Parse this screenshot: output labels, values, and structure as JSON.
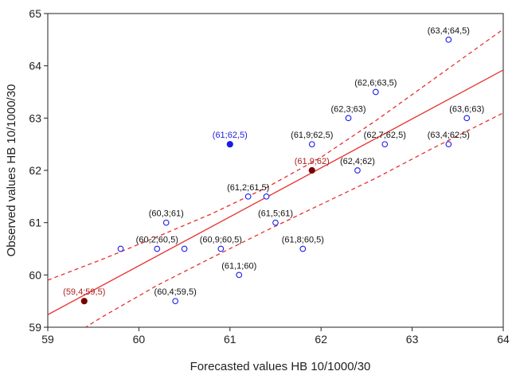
{
  "chart_data": {
    "type": "scatter",
    "xlabel": "Forecasted values HB 10/1000/30",
    "ylabel": "Observed values HB 10/1000/30",
    "xlim": [
      59,
      64
    ],
    "ylim": [
      59,
      65
    ],
    "x_ticks": [
      "59",
      "60",
      "61",
      "62",
      "63",
      "64"
    ],
    "y_ticks": [
      "59",
      "60",
      "61",
      "62",
      "63",
      "64",
      "65"
    ],
    "grid": false,
    "legend": "none",
    "regression_line": {
      "x": [
        59,
        64
      ],
      "y": [
        59.24,
        63.92
      ]
    },
    "confidence_band": {
      "upper": {
        "x": [
          59,
          59.6,
          60.2,
          60.8,
          61.4,
          62.0,
          62.6,
          63.2,
          64
        ],
        "y": [
          59.9,
          60.3,
          60.73,
          61.17,
          61.67,
          62.25,
          62.95,
          63.7,
          64.7
        ]
      },
      "lower": {
        "x": [
          59,
          59.6,
          60.2,
          60.8,
          61.4,
          62.0,
          62.6,
          63.2,
          64
        ],
        "y": [
          58.55,
          59.2,
          59.8,
          60.33,
          60.85,
          61.35,
          61.85,
          62.4,
          63.1
        ]
      }
    },
    "points": [
      {
        "x": 63.4,
        "y": 64.5,
        "label": "(63,4;64,5)",
        "style": "open",
        "label_color": "#111111"
      },
      {
        "x": 62.6,
        "y": 63.5,
        "label": "(62,6;63,5)",
        "style": "open",
        "label_color": "#111111"
      },
      {
        "x": 62.3,
        "y": 63.0,
        "label": "(62,3;63)",
        "style": "open",
        "label_color": "#111111"
      },
      {
        "x": 63.6,
        "y": 63.0,
        "label": "(63,6;63)",
        "style": "open",
        "label_color": "#111111"
      },
      {
        "x": 61.9,
        "y": 62.5,
        "label": "(61,9;62,5)",
        "style": "open",
        "label_color": "#111111"
      },
      {
        "x": 62.7,
        "y": 62.5,
        "label": "(62,7;62,5)",
        "style": "open",
        "label_color": "#111111"
      },
      {
        "x": 63.4,
        "y": 62.5,
        "label": "(63,4;62,5)",
        "style": "open",
        "label_color": "#111111"
      },
      {
        "x": 61.0,
        "y": 62.5,
        "label": "(61;62,5)",
        "style": "filled",
        "color": "#1a1aee",
        "label_color": "#2222dd"
      },
      {
        "x": 61.9,
        "y": 62.0,
        "label": "(61,9;62)",
        "style": "filled",
        "color": "#7a0000",
        "label_color": "#aa2222"
      },
      {
        "x": 62.4,
        "y": 62.0,
        "label": "(62,4;62)",
        "style": "open",
        "label_color": "#111111"
      },
      {
        "x": 61.2,
        "y": 61.5,
        "label": "(61,2;61,5)",
        "style": "open",
        "label_color": "#111111"
      },
      {
        "x": 61.4,
        "y": 61.5,
        "label": "",
        "style": "open"
      },
      {
        "x": 61.5,
        "y": 61.0,
        "label": "(61,5;61)",
        "style": "open",
        "label_color": "#111111"
      },
      {
        "x": 60.3,
        "y": 61.0,
        "label": "(60,3;61)",
        "style": "open",
        "label_color": "#111111"
      },
      {
        "x": 59.8,
        "y": 60.5,
        "label": "",
        "style": "open"
      },
      {
        "x": 60.2,
        "y": 60.5,
        "label": "(60,2;60,5)",
        "style": "open",
        "label_color": "#111111"
      },
      {
        "x": 60.5,
        "y": 60.5,
        "label": "",
        "style": "open"
      },
      {
        "x": 60.9,
        "y": 60.5,
        "label": "(60,9;60,5)",
        "style": "open",
        "label_color": "#111111"
      },
      {
        "x": 61.8,
        "y": 60.5,
        "label": "(61,8;60,5)",
        "style": "open",
        "label_color": "#111111"
      },
      {
        "x": 61.1,
        "y": 60.0,
        "label": "(61,1;60)",
        "style": "open",
        "label_color": "#111111"
      },
      {
        "x": 60.4,
        "y": 59.5,
        "label": "(60,4;59,5)",
        "style": "open",
        "label_color": "#111111"
      },
      {
        "x": 59.4,
        "y": 59.5,
        "label": "(59,4;59,5)",
        "style": "filled",
        "color": "#7a0000",
        "label_color": "#aa2222"
      }
    ],
    "colors": {
      "marker": "#1a1aee",
      "line": "#e8302c",
      "axis": "#222222"
    }
  }
}
